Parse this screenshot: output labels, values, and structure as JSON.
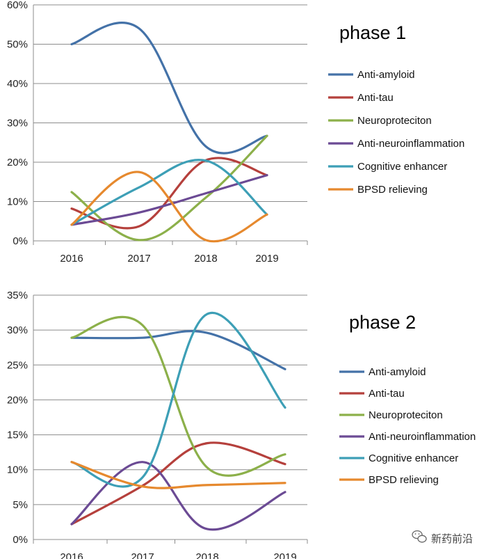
{
  "chart_data": [
    {
      "type": "line",
      "title": "phase 1",
      "categories": [
        "2016",
        "2017",
        "2018",
        "2019"
      ],
      "ylim": [
        0,
        60
      ],
      "yticks": [
        "0%",
        "10%",
        "20%",
        "30%",
        "40%",
        "50%",
        "60%"
      ],
      "grid": "horizontal",
      "legend": "right",
      "series": [
        {
          "name": "Anti-amyloid",
          "color": "#4472A8",
          "values": [
            50,
            54,
            24,
            26.7
          ]
        },
        {
          "name": "Anti-tau",
          "color": "#B5403C",
          "values": [
            8.2,
            3.7,
            20.5,
            16.7
          ]
        },
        {
          "name": "Neuroproteciton",
          "color": "#8CB04A",
          "values": [
            12.4,
            0.2,
            11,
            26.7
          ]
        },
        {
          "name": "Anti-neuroinflammation",
          "color": "#6B4A94",
          "values": [
            4.1,
            7.2,
            12.1,
            16.7
          ]
        },
        {
          "name": "Cognitive enhancer",
          "color": "#3D9FB6",
          "values": [
            4.1,
            13.6,
            20.4,
            6.7
          ]
        },
        {
          "name": "BPSD relieving",
          "color": "#E6892E",
          "values": [
            4.1,
            17.5,
            0.2,
            6.7
          ]
        }
      ]
    },
    {
      "type": "line",
      "title": "phase 2",
      "categories": [
        "2016",
        "2017",
        "2018",
        "2019"
      ],
      "ylim": [
        0,
        35
      ],
      "yticks": [
        "0%",
        "5%",
        "10%",
        "15%",
        "20%",
        "25%",
        "30%",
        "35%"
      ],
      "grid": "horizontal",
      "legend": "right",
      "series": [
        {
          "name": "Anti-amyloid",
          "color": "#4472A8",
          "values": [
            28.9,
            28.9,
            29.6,
            24.4
          ]
        },
        {
          "name": "Anti-tau",
          "color": "#B5403C",
          "values": [
            2.2,
            7.7,
            13.8,
            10.8
          ]
        },
        {
          "name": "Neuroproteciton",
          "color": "#8CB04A",
          "values": [
            28.9,
            30.7,
            10.3,
            12.2
          ]
        },
        {
          "name": "Anti-neuroinflammation",
          "color": "#6B4A94",
          "values": [
            2.2,
            11.1,
            1.5,
            6.8
          ]
        },
        {
          "name": "Cognitive enhancer",
          "color": "#3D9FB6",
          "values": [
            11.1,
            8.9,
            32.3,
            18.9
          ]
        },
        {
          "name": "BPSD relieving",
          "color": "#E6892E",
          "values": [
            11.1,
            7.6,
            7.8,
            8.1
          ]
        }
      ]
    }
  ],
  "watermark": {
    "text": "新药前沿",
    "icon": "wechat-icon"
  }
}
